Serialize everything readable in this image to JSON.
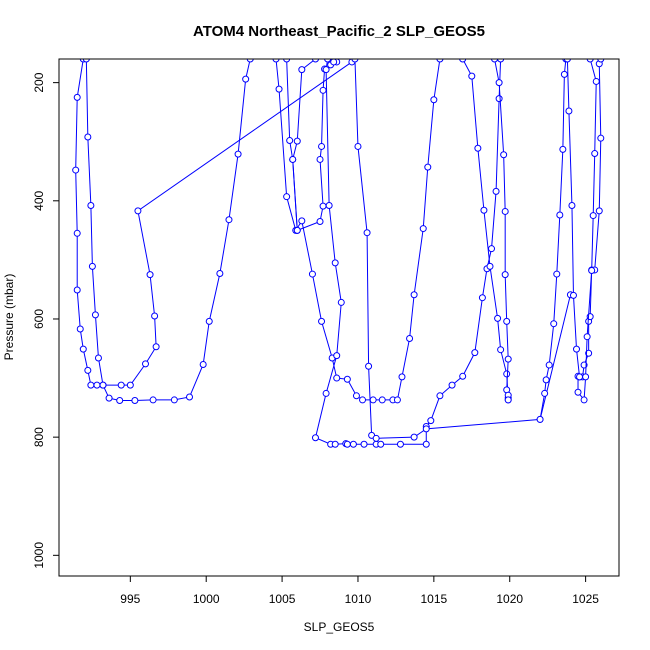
{
  "chart_data": {
    "type": "line",
    "title": "ATOM4 Northeast_Pacific_2 SLP_GEOS5",
    "xlabel": "SLP_GEOS5",
    "ylabel": "Pressure (mbar)",
    "xlim": [
      990.3,
      1027.2
    ],
    "ylim": [
      1035,
      160
    ],
    "y_reversed": true,
    "x_ticks": [
      995,
      1000,
      1005,
      1010,
      1015,
      1020,
      1025
    ],
    "y_ticks": [
      200,
      400,
      600,
      800,
      1000
    ],
    "series_color": "#0000ff",
    "marker": "open-circle",
    "series": [
      {
        "values": [
          {
            "x": 991.9,
            "y": 160
          },
          {
            "x": 991.5,
            "y": 225
          },
          {
            "x": 991.4,
            "y": 348
          },
          {
            "x": 991.5,
            "y": 455
          },
          {
            "x": 991.5,
            "y": 551
          },
          {
            "x": 991.7,
            "y": 617
          },
          {
            "x": 991.9,
            "y": 651
          },
          {
            "x": 992.2,
            "y": 687
          },
          {
            "x": 992.4,
            "y": 712
          },
          {
            "x": 992.8,
            "y": 712
          },
          {
            "x": 993.2,
            "y": 712
          },
          {
            "x": 993.6,
            "y": 734
          },
          {
            "x": 994.3,
            "y": 738
          },
          {
            "x": 995.3,
            "y": 738
          },
          {
            "x": 996.5,
            "y": 737
          },
          {
            "x": 997.9,
            "y": 737
          },
          {
            "x": 998.9,
            "y": 732
          },
          {
            "x": 999.8,
            "y": 677
          },
          {
            "x": 1000.2,
            "y": 604
          },
          {
            "x": 1000.9,
            "y": 523
          },
          {
            "x": 1001.5,
            "y": 432
          },
          {
            "x": 1002.1,
            "y": 321
          },
          {
            "x": 1002.6,
            "y": 194
          },
          {
            "x": 1002.9,
            "y": 160
          }
        ]
      },
      {
        "values": [
          {
            "x": 992.1,
            "y": 160
          },
          {
            "x": 992.2,
            "y": 292
          },
          {
            "x": 992.4,
            "y": 408
          },
          {
            "x": 992.5,
            "y": 511
          },
          {
            "x": 992.7,
            "y": 593
          },
          {
            "x": 992.9,
            "y": 666
          },
          {
            "x": 993.2,
            "y": 712
          },
          {
            "x": 994.4,
            "y": 712
          },
          {
            "x": 995.0,
            "y": 712
          },
          {
            "x": 996.0,
            "y": 676
          },
          {
            "x": 996.7,
            "y": 647
          },
          {
            "x": 996.6,
            "y": 595
          },
          {
            "x": 996.3,
            "y": 525
          },
          {
            "x": 995.5,
            "y": 417
          },
          {
            "x": 1009.6,
            "y": 165
          }
        ]
      },
      {
        "values": [
          {
            "x": 1004.6,
            "y": 160
          },
          {
            "x": 1004.8,
            "y": 211
          },
          {
            "x": 1005.3,
            "y": 393
          },
          {
            "x": 1005.9,
            "y": 450
          },
          {
            "x": 1006.3,
            "y": 434
          },
          {
            "x": 1007.0,
            "y": 524
          },
          {
            "x": 1007.6,
            "y": 604
          },
          {
            "x": 1008.3,
            "y": 666
          },
          {
            "x": 1008.6,
            "y": 700
          },
          {
            "x": 1009.3,
            "y": 702
          },
          {
            "x": 1009.9,
            "y": 730
          },
          {
            "x": 1010.3,
            "y": 737
          },
          {
            "x": 1011.0,
            "y": 737
          },
          {
            "x": 1011.6,
            "y": 737
          },
          {
            "x": 1012.3,
            "y": 737
          },
          {
            "x": 1012.6,
            "y": 737
          },
          {
            "x": 1012.9,
            "y": 698
          },
          {
            "x": 1013.4,
            "y": 633
          },
          {
            "x": 1013.7,
            "y": 559
          },
          {
            "x": 1014.3,
            "y": 447
          },
          {
            "x": 1014.6,
            "y": 343
          },
          {
            "x": 1015.0,
            "y": 229
          },
          {
            "x": 1015.4,
            "y": 160
          }
        ]
      },
      {
        "values": [
          {
            "x": 1005.3,
            "y": 160
          },
          {
            "x": 1005.5,
            "y": 298
          },
          {
            "x": 1005.7,
            "y": 330
          },
          {
            "x": 1006.0,
            "y": 450
          },
          {
            "x": 1007.5,
            "y": 435
          },
          {
            "x": 1007.7,
            "y": 409
          },
          {
            "x": 1007.5,
            "y": 330
          },
          {
            "x": 1007.6,
            "y": 308
          },
          {
            "x": 1007.7,
            "y": 213
          },
          {
            "x": 1007.8,
            "y": 177
          },
          {
            "x": 1008.2,
            "y": 170
          },
          {
            "x": 1008.6,
            "y": 165
          },
          {
            "x": 1008.4,
            "y": 165
          }
        ]
      },
      {
        "values": [
          {
            "x": 1007.2,
            "y": 160
          },
          {
            "x": 1006.3,
            "y": 178
          },
          {
            "x": 1006.0,
            "y": 299
          },
          {
            "x": 1005.7,
            "y": 330
          },
          {
            "x": 1006.0,
            "y": 450
          }
        ]
      },
      {
        "values": [
          {
            "x": 1008.0,
            "y": 160
          },
          {
            "x": 1007.9,
            "y": 178
          },
          {
            "x": 1008.1,
            "y": 408
          },
          {
            "x": 1008.5,
            "y": 505
          },
          {
            "x": 1008.9,
            "y": 572
          },
          {
            "x": 1008.6,
            "y": 662
          },
          {
            "x": 1007.9,
            "y": 726
          },
          {
            "x": 1007.2,
            "y": 801
          },
          {
            "x": 1008.2,
            "y": 812
          },
          {
            "x": 1008.5,
            "y": 812
          },
          {
            "x": 1009.2,
            "y": 811
          },
          {
            "x": 1009.3,
            "y": 812
          },
          {
            "x": 1009.7,
            "y": 812
          },
          {
            "x": 1010.4,
            "y": 812
          },
          {
            "x": 1011.2,
            "y": 812
          },
          {
            "x": 1011.5,
            "y": 812
          },
          {
            "x": 1012.8,
            "y": 812
          },
          {
            "x": 1014.5,
            "y": 812
          },
          {
            "x": 1014.5,
            "y": 782
          },
          {
            "x": 1014.8,
            "y": 772
          },
          {
            "x": 1015.4,
            "y": 730
          },
          {
            "x": 1016.2,
            "y": 712
          },
          {
            "x": 1016.9,
            "y": 697
          },
          {
            "x": 1017.7,
            "y": 657
          },
          {
            "x": 1018.2,
            "y": 564
          },
          {
            "x": 1018.5,
            "y": 515
          },
          {
            "x": 1018.8,
            "y": 481
          },
          {
            "x": 1019.1,
            "y": 384
          },
          {
            "x": 1019.3,
            "y": 227
          },
          {
            "x": 1019.4,
            "y": 160
          }
        ]
      },
      {
        "values": [
          {
            "x": 1009.8,
            "y": 160
          },
          {
            "x": 1010.0,
            "y": 308
          },
          {
            "x": 1010.6,
            "y": 454
          },
          {
            "x": 1010.7,
            "y": 680
          },
          {
            "x": 1010.9,
            "y": 797
          },
          {
            "x": 1011.2,
            "y": 802
          },
          {
            "x": 1013.7,
            "y": 800
          },
          {
            "x": 1014.5,
            "y": 786
          },
          {
            "x": 1022.0,
            "y": 770
          },
          {
            "x": 1024.0,
            "y": 559
          }
        ]
      },
      {
        "values": [
          {
            "x": 1016.9,
            "y": 160
          },
          {
            "x": 1017.5,
            "y": 189
          },
          {
            "x": 1017.9,
            "y": 311
          },
          {
            "x": 1018.3,
            "y": 416
          },
          {
            "x": 1018.7,
            "y": 511
          },
          {
            "x": 1019.2,
            "y": 599
          },
          {
            "x": 1019.4,
            "y": 652
          },
          {
            "x": 1019.8,
            "y": 693
          },
          {
            "x": 1019.9,
            "y": 734
          },
          {
            "x": 1019.9,
            "y": 737
          }
        ]
      },
      {
        "values": [
          {
            "x": 1019.0,
            "y": 160
          },
          {
            "x": 1019.3,
            "y": 200
          },
          {
            "x": 1019.6,
            "y": 322
          },
          {
            "x": 1019.7,
            "y": 418
          },
          {
            "x": 1019.7,
            "y": 525
          },
          {
            "x": 1019.8,
            "y": 604
          },
          {
            "x": 1019.9,
            "y": 668
          },
          {
            "x": 1019.8,
            "y": 720
          },
          {
            "x": 1019.9,
            "y": 729
          },
          {
            "x": 1019.9,
            "y": 737
          }
        ]
      },
      {
        "values": [
          {
            "x": 1022.0,
            "y": 770
          },
          {
            "x": 1022.3,
            "y": 726
          },
          {
            "x": 1022.4,
            "y": 703
          },
          {
            "x": 1022.6,
            "y": 678
          },
          {
            "x": 1022.9,
            "y": 608
          },
          {
            "x": 1023.1,
            "y": 524
          },
          {
            "x": 1023.3,
            "y": 424
          },
          {
            "x": 1023.5,
            "y": 313
          },
          {
            "x": 1023.6,
            "y": 186
          },
          {
            "x": 1023.7,
            "y": 160
          }
        ]
      },
      {
        "values": [
          {
            "x": 1023.8,
            "y": 160
          },
          {
            "x": 1023.9,
            "y": 248
          },
          {
            "x": 1024.1,
            "y": 408
          },
          {
            "x": 1024.2,
            "y": 560
          },
          {
            "x": 1024.4,
            "y": 651
          },
          {
            "x": 1024.6,
            "y": 698
          },
          {
            "x": 1024.8,
            "y": 698
          },
          {
            "x": 1024.9,
            "y": 678
          },
          {
            "x": 1025.2,
            "y": 658
          },
          {
            "x": 1025.2,
            "y": 604
          },
          {
            "x": 1025.3,
            "y": 596
          },
          {
            "x": 1025.4,
            "y": 517
          },
          {
            "x": 1025.6,
            "y": 517
          },
          {
            "x": 1025.9,
            "y": 417
          },
          {
            "x": 1026.0,
            "y": 294
          },
          {
            "x": 1025.9,
            "y": 168
          },
          {
            "x": 1026.0,
            "y": 160
          }
        ]
      },
      {
        "values": [
          {
            "x": 1025.3,
            "y": 160
          },
          {
            "x": 1025.7,
            "y": 198
          },
          {
            "x": 1025.6,
            "y": 320
          },
          {
            "x": 1025.5,
            "y": 425
          },
          {
            "x": 1025.4,
            "y": 518
          },
          {
            "x": 1025.1,
            "y": 630
          },
          {
            "x": 1025.0,
            "y": 698
          },
          {
            "x": 1024.9,
            "y": 737
          },
          {
            "x": 1024.5,
            "y": 724
          },
          {
            "x": 1024.5,
            "y": 697
          },
          {
            "x": 1024.6,
            "y": 698
          }
        ]
      }
    ]
  }
}
